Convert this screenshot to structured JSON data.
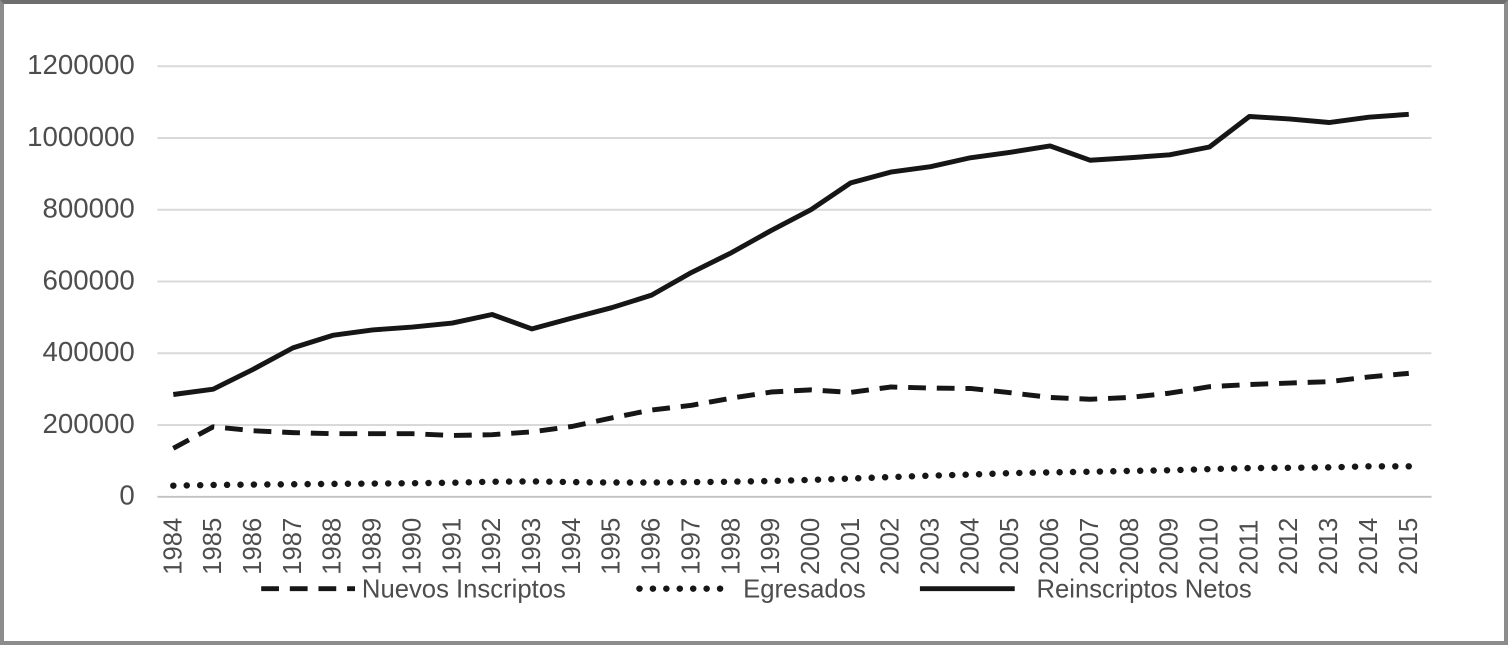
{
  "chart_data": {
    "type": "line",
    "title": "",
    "xlabel": "",
    "ylabel": "",
    "x": [
      1984,
      1985,
      1986,
      1987,
      1988,
      1989,
      1990,
      1991,
      1992,
      1993,
      1994,
      1995,
      1996,
      1997,
      1998,
      1999,
      2000,
      2001,
      2002,
      2003,
      2004,
      2005,
      2006,
      2007,
      2008,
      2009,
      2010,
      2011,
      2012,
      2013,
      2014,
      2015
    ],
    "series": [
      {
        "name": "Nuevos Inscriptos",
        "style": "dashed",
        "values": [
          135000,
          195000,
          184000,
          179000,
          176000,
          176000,
          176000,
          171000,
          173000,
          181000,
          196000,
          220000,
          242000,
          255000,
          275000,
          292000,
          298000,
          291000,
          306000,
          303000,
          302000,
          290000,
          277000,
          272000,
          277000,
          289000,
          307000,
          313000,
          317000,
          321000,
          334000,
          344000
        ]
      },
      {
        "name": "Egresados",
        "style": "dotted",
        "values": [
          31000,
          33000,
          34000,
          35000,
          36000,
          37000,
          38000,
          39000,
          42000,
          43000,
          41000,
          40000,
          40000,
          41000,
          42000,
          44000,
          47000,
          51000,
          55000,
          59000,
          62000,
          66000,
          68000,
          70000,
          72000,
          74000,
          77000,
          80000,
          81000,
          82000,
          85000,
          85000
        ]
      },
      {
        "name": "Reinscriptos Netos",
        "style": "solid",
        "values": [
          285000,
          300000,
          355000,
          415000,
          450000,
          465000,
          473000,
          484000,
          508000,
          468000,
          498000,
          527000,
          562000,
          625000,
          680000,
          742000,
          800000,
          875000,
          905000,
          920000,
          945000,
          960000,
          978000,
          938000,
          945000,
          953000,
          975000,
          1060000,
          1053000,
          1043000,
          1058000,
          1066000
        ]
      }
    ],
    "ylim": [
      0,
      1200000
    ],
    "yticks": [
      0,
      200000,
      400000,
      600000,
      800000,
      1000000,
      1200000
    ],
    "ytick_labels": [
      "0",
      "200000",
      "400000",
      "600000",
      "800000",
      "1000000",
      "1200000"
    ],
    "grid": true,
    "legend_position": "bottom",
    "colors": {
      "series_line": "#161616",
      "gridline": "#d9d9d9",
      "zero_axis": "#c2c2c2",
      "label_text": "#4d4d4d",
      "frame_border": "#8c8c8c",
      "background": "#ffffff"
    }
  }
}
